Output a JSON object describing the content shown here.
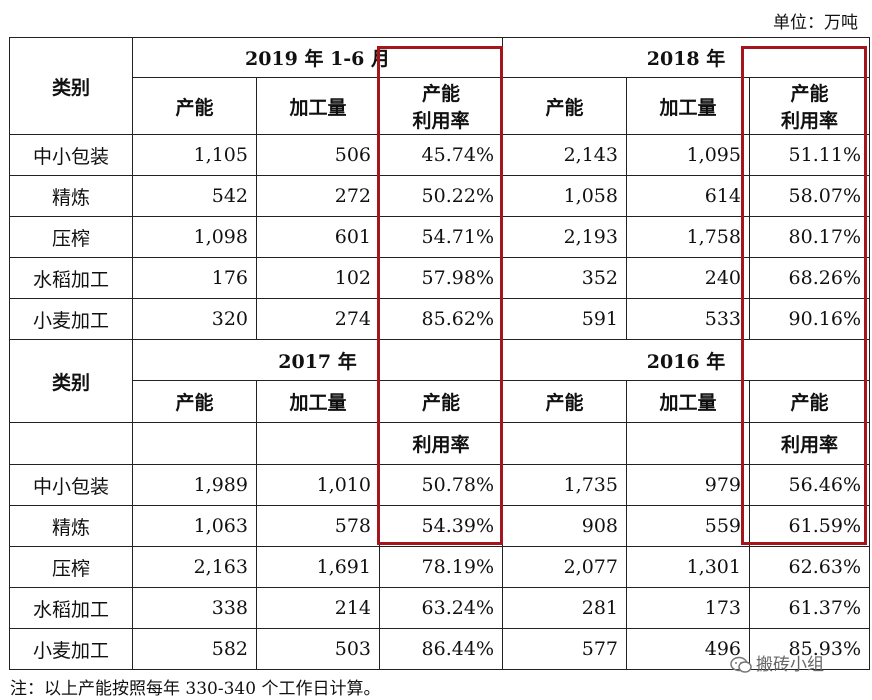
{
  "unit_label": "单位：万吨",
  "blocks": [
    {
      "left": {
        "year": "2019 年 1-6 月",
        "h1": "产能",
        "h2": "加工量",
        "h3": "产能\n利用率"
      },
      "right": {
        "year": "2018 年",
        "h1": "产能",
        "h2": "加工量",
        "h3": "产能\n利用率"
      },
      "category_header": "类别",
      "rows": [
        {
          "cat": "中小包装",
          "c1": "1,105",
          "c2": "506",
          "c3": "45.74%",
          "c4": "2,143",
          "c5": "1,095",
          "c6": "51.11%"
        },
        {
          "cat": "精炼",
          "c1": "542",
          "c2": "272",
          "c3": "50.22%",
          "c4": "1,058",
          "c5": "614",
          "c6": "58.07%"
        },
        {
          "cat": "压榨",
          "c1": "1,098",
          "c2": "601",
          "c3": "54.71%",
          "c4": "2,193",
          "c5": "1,758",
          "c6": "80.17%"
        },
        {
          "cat": "水稻加工",
          "c1": "176",
          "c2": "102",
          "c3": "57.98%",
          "c4": "352",
          "c5": "240",
          "c6": "68.26%"
        },
        {
          "cat": "小麦加工",
          "c1": "320",
          "c2": "274",
          "c3": "85.62%",
          "c4": "591",
          "c5": "533",
          "c6": "90.16%"
        }
      ]
    },
    {
      "left": {
        "year": "2017 年",
        "h1": "产能",
        "h2": "加工量",
        "h3a": "产能",
        "h3b": "利用率"
      },
      "right": {
        "year": "2016 年",
        "h1": "产能",
        "h2": "加工量",
        "h3a": "产能",
        "h3b": "利用率"
      },
      "category_header": "类别",
      "rows": [
        {
          "cat": "中小包装",
          "c1": "1,989",
          "c2": "1,010",
          "c3": "50.78%",
          "c4": "1,735",
          "c5": "979",
          "c6": "56.46%"
        },
        {
          "cat": "精炼",
          "c1": "1,063",
          "c2": "578",
          "c3": "54.39%",
          "c4": "908",
          "c5": "559",
          "c6": "61.59%"
        },
        {
          "cat": "压榨",
          "c1": "2,163",
          "c2": "1,691",
          "c3": "78.19%",
          "c4": "2,077",
          "c5": "1,301",
          "c6": "62.63%"
        },
        {
          "cat": "水稻加工",
          "c1": "338",
          "c2": "214",
          "c3": "63.24%",
          "c4": "281",
          "c5": "173",
          "c6": "61.37%"
        },
        {
          "cat": "小麦加工",
          "c1": "582",
          "c2": "503",
          "c3": "86.44%",
          "c4": "577",
          "c5": "496",
          "c6": "85.93%"
        }
      ]
    }
  ],
  "note": "注：以上产能按照每年 330-340 个工作日计算。",
  "watermark": "搬砖小组",
  "highlight_color": "#a5151c"
}
